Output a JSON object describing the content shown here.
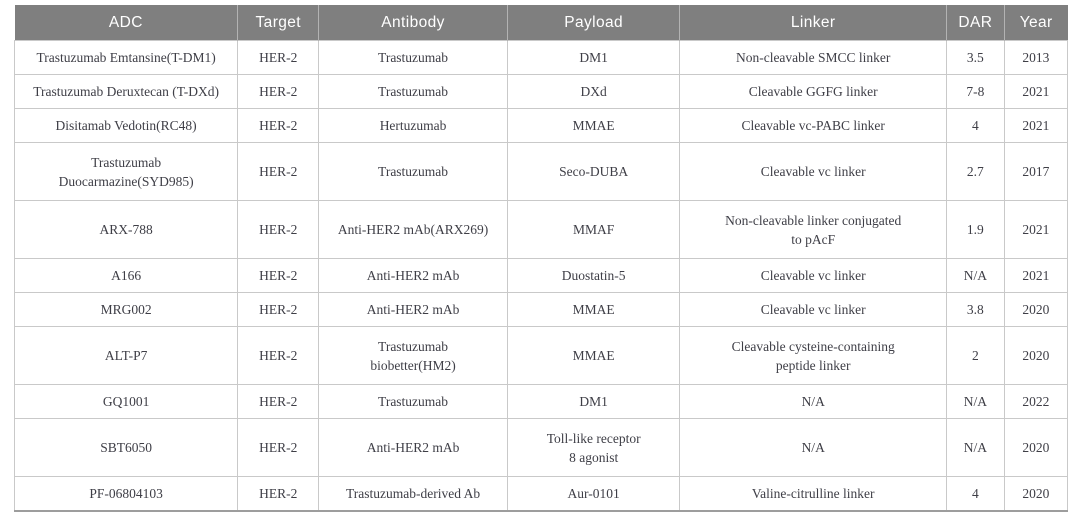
{
  "table": {
    "columns": [
      "ADC",
      "Target",
      "Antibody",
      "Payload",
      "Linker",
      "DAR",
      "Year"
    ],
    "rows": [
      [
        "Trastuzumab Emtansine(T-DM1)",
        "HER-2",
        "Trastuzumab",
        "DM1",
        "Non-cleavable SMCC linker",
        "3.5",
        "2013"
      ],
      [
        "Trastuzumab Deruxtecan (T-DXd)",
        "HER-2",
        "Trastuzumab",
        "DXd",
        "Cleavable GGFG linker",
        "7-8",
        "2021"
      ],
      [
        "Disitamab Vedotin(RC48)",
        "HER-2",
        "Hertuzumab",
        "MMAE",
        "Cleavable vc-PABC linker",
        "4",
        "2021"
      ],
      [
        "Trastuzumab\nDuocarmazine(SYD985)",
        "HER-2",
        "Trastuzumab",
        "Seco-DUBA",
        "Cleavable vc linker",
        "2.7",
        "2017"
      ],
      [
        "ARX-788",
        "HER-2",
        "Anti-HER2 mAb(ARX269)",
        "MMAF",
        "Non-cleavable linker conjugated\nto pAcF",
        "1.9",
        "2021"
      ],
      [
        "A166",
        "HER-2",
        "Anti-HER2 mAb",
        "Duostatin-5",
        "Cleavable vc linker",
        "N/A",
        "2021"
      ],
      [
        "MRG002",
        "HER-2",
        "Anti-HER2 mAb",
        "MMAE",
        "Cleavable vc linker",
        "3.8",
        "2020"
      ],
      [
        "ALT-P7",
        "HER-2",
        "Trastuzumab\nbiobetter(HM2)",
        "MMAE",
        "Cleavable cysteine-containing\npeptide linker",
        "2",
        "2020"
      ],
      [
        "GQ1001",
        "HER-2",
        "Trastuzumab",
        "DM1",
        "N/A",
        "N/A",
        "2022"
      ],
      [
        "SBT6050",
        "HER-2",
        "Anti-HER2 mAb",
        "Toll-like receptor\n8 agonist",
        "N/A",
        "N/A",
        "2020"
      ],
      [
        "PF-06804103",
        "HER-2",
        "Trastuzumab-derived Ab",
        "Aur-0101",
        "Valine-citrulline linker",
        "4",
        "2020"
      ]
    ]
  },
  "colors": {
    "header_bg": "#7f7f7f",
    "header_text": "#ffffff",
    "body_text": "#3e3e46",
    "border": "#c9c9c9"
  }
}
